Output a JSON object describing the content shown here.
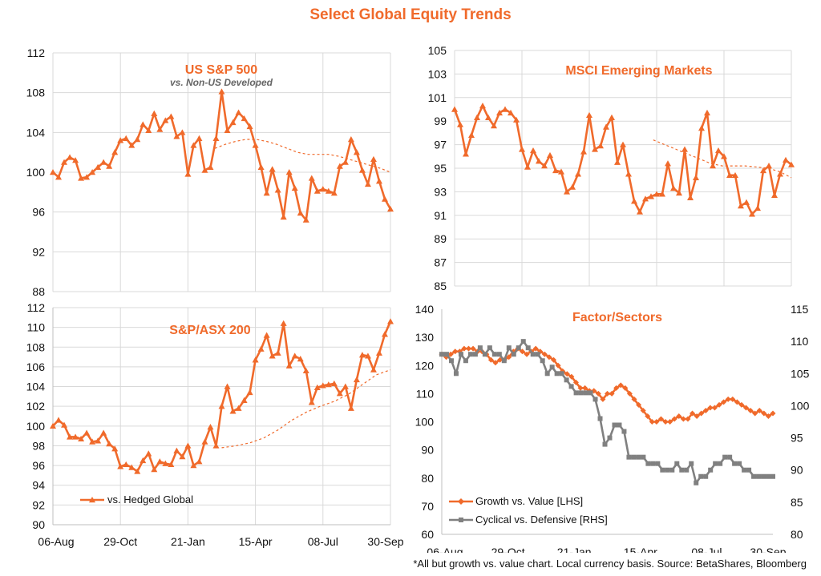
{
  "page": {
    "title": "Select Global Equity Trends",
    "footnote": "*All but growth vs. value chart. Local currency basis. Source: BetaShares, Bloomberg"
  },
  "colors": {
    "primary": "#f06a2b",
    "secondary": "#808080",
    "grid": "#d9d9d9"
  },
  "x_labels": [
    "06-Aug",
    "29-Oct",
    "21-Jan",
    "15-Apr",
    "08-Jul",
    "30-Sep"
  ],
  "chart_data": [
    {
      "type": "line",
      "title": "US S&P 500",
      "subtitle": "vs. Non-US Developed",
      "y_ticks": [
        "88",
        "92",
        "96",
        "100",
        "104",
        "108",
        "112"
      ],
      "ylim": [
        88,
        112
      ],
      "grid": true,
      "series": [
        {
          "values": [
            100,
            99.5,
            101,
            101.5,
            101.2,
            99.4,
            99.5,
            100,
            100.5,
            101,
            100.6,
            102,
            103.2,
            103.4,
            102.7,
            103.3,
            104.8,
            104.2,
            105.9,
            104.3,
            105.2,
            105.6,
            103.6,
            104.0,
            99.8,
            102.7,
            103.4,
            100.2,
            100.5,
            103.4,
            108.1,
            104.2,
            105.0,
            106.0,
            105.4,
            104.6,
            102.7,
            100.5,
            97.9,
            100.3,
            98.2,
            95.5,
            100.0,
            98.4,
            95.9,
            95.2,
            99.4,
            98.1,
            98.3,
            98.1,
            97.9,
            100.6,
            101.0,
            103.3,
            102.0,
            100.2,
            98.8,
            101.3,
            99.1,
            97.3,
            96.3
          ]
        },
        {
          "dashed": true,
          "values": [
            102.4,
            102.8,
            103.1,
            103.3,
            103.3,
            103.1,
            102.8,
            102.4,
            102.0,
            101.8,
            101.8,
            101.8,
            101.6,
            101.3,
            101.0,
            100.7,
            100.4,
            100.0
          ]
        }
      ]
    },
    {
      "type": "line",
      "title": "MSCI Emerging Markets",
      "y_ticks": [
        "85",
        "87",
        "89",
        "91",
        "93",
        "95",
        "97",
        "99",
        "101",
        "103",
        "105"
      ],
      "ylim": [
        85,
        105
      ],
      "grid": true,
      "series": [
        {
          "values": [
            100,
            98.7,
            96.2,
            97.8,
            99.3,
            100.3,
            99.3,
            98.6,
            99.7,
            100.0,
            99.7,
            99.1,
            96.6,
            95.1,
            96.5,
            95.6,
            95.2,
            96.1,
            94.8,
            94.7,
            93.0,
            93.4,
            94.5,
            96.4,
            99.5,
            96.6,
            96.9,
            98.5,
            99.3,
            95.5,
            97.0,
            94.5,
            92.2,
            91.3,
            92.4,
            92.6,
            92.8,
            92.8,
            95.4,
            93.3,
            92.9,
            96.6,
            92.5,
            94.2,
            98.4,
            99.7,
            95.2,
            96.5,
            96.0,
            94.4,
            94.4,
            91.8,
            92.1,
            91.1,
            91.6,
            94.8,
            95.2,
            92.7,
            94.5,
            95.7,
            95.3
          ]
        },
        {
          "dashed": true,
          "values": [
            97.4,
            97.0,
            96.6,
            96.2,
            95.8,
            95.4,
            95.2,
            95.2,
            95.2,
            95.1,
            95.0,
            94.7,
            94.2
          ]
        }
      ]
    },
    {
      "type": "line",
      "title": "S&P/ASX 200",
      "y_ticks": [
        "90",
        "92",
        "94",
        "96",
        "98",
        "100",
        "102",
        "104",
        "106",
        "108",
        "110",
        "112"
      ],
      "ylim": [
        90,
        112
      ],
      "grid": true,
      "legend": {
        "label": "vs. Hedged Global",
        "position": "bottom-left"
      },
      "series": [
        {
          "values": [
            100,
            100.6,
            100.1,
            98.9,
            98.9,
            98.7,
            99.3,
            98.4,
            98.5,
            99.3,
            98.2,
            97.7,
            95.9,
            96.1,
            95.8,
            95.4,
            96.5,
            97.2,
            95.6,
            96.4,
            96.2,
            96.1,
            97.5,
            96.9,
            98.0,
            96.0,
            96.4,
            98.4,
            99.9,
            98.0,
            102.0,
            104.0,
            101.5,
            101.8,
            102.6,
            103.4,
            106.7,
            107.8,
            109.2,
            107.1,
            107.4,
            110.4,
            106.1,
            107.1,
            106.8,
            105.6,
            102.4,
            103.9,
            104.1,
            104.2,
            104.3,
            103.3,
            104.0,
            101.8,
            104.7,
            107.2,
            107.1,
            105.7,
            107.4,
            109.3,
            110.6
          ]
        },
        {
          "dashed": true,
          "values": [
            97.8,
            98.0,
            98.3,
            98.8,
            99.6,
            100.6,
            101.4,
            102.0,
            102.5,
            103.2,
            104.2,
            105.2,
            105.7
          ]
        }
      ]
    },
    {
      "type": "line",
      "title": "Factor/Sectors",
      "y_ticks": [
        "60",
        "70",
        "80",
        "90",
        "100",
        "110",
        "120",
        "130",
        "140"
      ],
      "ylim": [
        60,
        140
      ],
      "y2_ticks": [
        "80",
        "85",
        "90",
        "95",
        "100",
        "105",
        "110",
        "115"
      ],
      "y2lim": [
        80,
        115
      ],
      "grid": false,
      "legend": {
        "position": "bottom-left"
      },
      "series": [
        {
          "name": "Growth vs. Value [LHS]",
          "axis": "left",
          "values": [
            124,
            123,
            124,
            125,
            125,
            126,
            126,
            126,
            125,
            125,
            124,
            122,
            121,
            122,
            122,
            123,
            125,
            126,
            125,
            124,
            125,
            126,
            125,
            124,
            123,
            122,
            120,
            118,
            117,
            116,
            114,
            112,
            112,
            111,
            111,
            110,
            108,
            110,
            110,
            112,
            113,
            112,
            110,
            108,
            106,
            104,
            102,
            100,
            100,
            101,
            100,
            100,
            101,
            102,
            101,
            101,
            103,
            102,
            103,
            104,
            105,
            105,
            106,
            107,
            108,
            108,
            107,
            106,
            105,
            104,
            103,
            104,
            103,
            102,
            103
          ]
        },
        {
          "name": "Cyclical vs. Defensive [RHS]",
          "axis": "right",
          "values": [
            108,
            108,
            107,
            105,
            108,
            107,
            108,
            108,
            109,
            108,
            109,
            108,
            108,
            107,
            109,
            108,
            109,
            110,
            109,
            108,
            108,
            107,
            105,
            106,
            105,
            105,
            104,
            103,
            102,
            102,
            102,
            102,
            101,
            98,
            94,
            95,
            97,
            97,
            96,
            92,
            92,
            92,
            92,
            91,
            91,
            91,
            90,
            90,
            90,
            91,
            90,
            90,
            91,
            88,
            89,
            89,
            90,
            91,
            91,
            92,
            92,
            91,
            91,
            90,
            90,
            89,
            89,
            89,
            89,
            89
          ]
        }
      ]
    }
  ]
}
